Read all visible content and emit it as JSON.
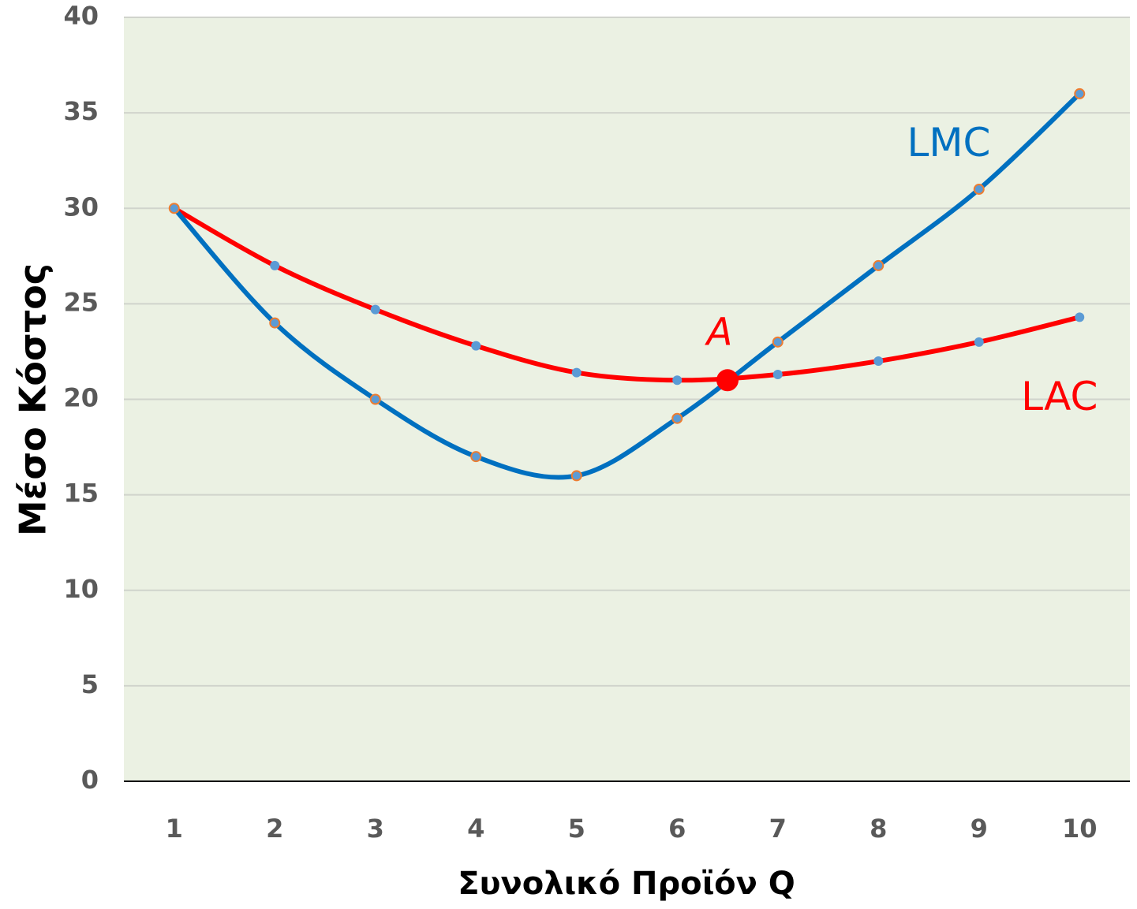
{
  "chart_data": {
    "type": "line",
    "x_label": "Συνολικό Προϊόν Q",
    "y_label": "Μέσο Κόστος",
    "x": [
      1,
      2,
      3,
      4,
      5,
      6,
      7,
      8,
      9,
      10
    ],
    "series": [
      {
        "name": "LAC",
        "color": "#ff0000",
        "marker_color": "#5b9bd5",
        "values": [
          30,
          27,
          24.7,
          22.8,
          21.4,
          21,
          21.3,
          22,
          23,
          24.3
        ],
        "label_x": 9.8,
        "label_y": 20
      },
      {
        "name": "LMC",
        "color": "#0070c0",
        "marker_color": "#5b9bd5",
        "marker_edge": "#ed7d31",
        "values": [
          30,
          24,
          20,
          17,
          16,
          19,
          23,
          27,
          31,
          36
        ],
        "label_x": 8.7,
        "label_y": 33.3
      }
    ],
    "annotations": [
      {
        "text": "A",
        "x": 6.5,
        "y": 21,
        "color": "#ff0000"
      }
    ],
    "xlim": [
      0.5,
      10.5
    ],
    "xticks": [
      1,
      2,
      3,
      4,
      5,
      6,
      7,
      8,
      9,
      10
    ],
    "ylim": [
      0,
      40
    ],
    "yticks": [
      0,
      5,
      10,
      15,
      20,
      25,
      30,
      35,
      40
    ],
    "grid": true,
    "background": "#ebf1e3"
  }
}
